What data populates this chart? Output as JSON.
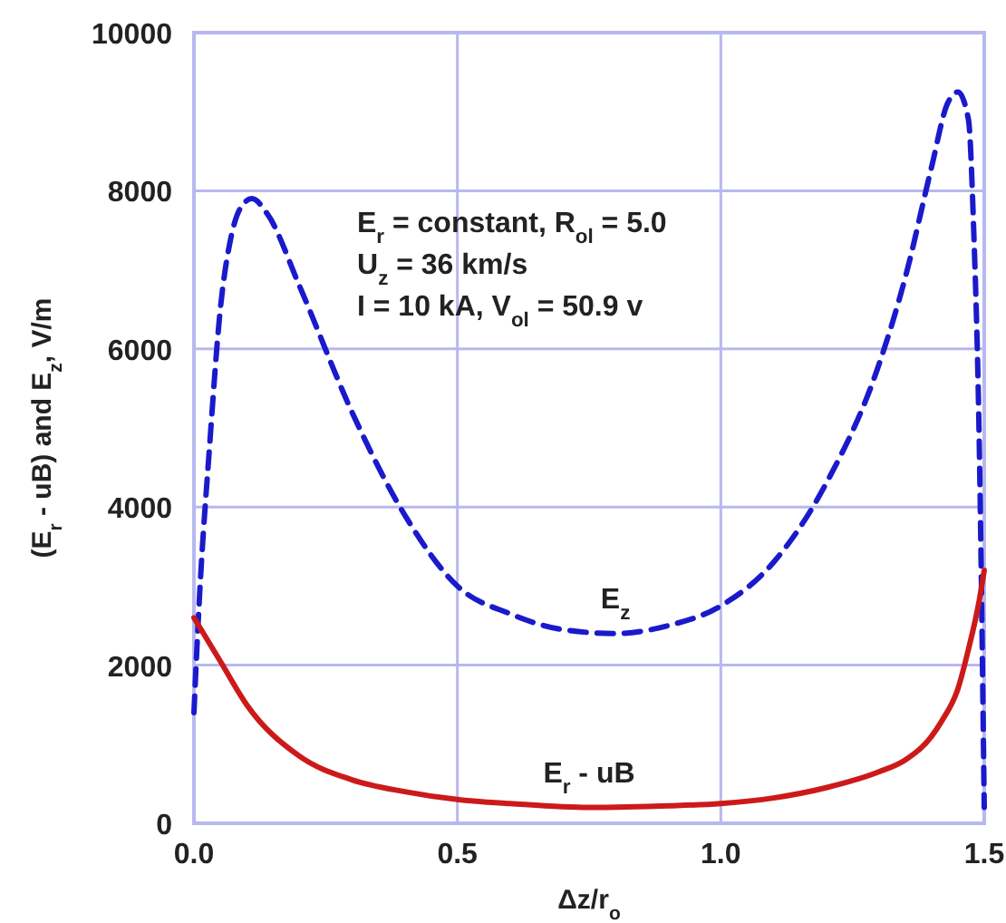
{
  "chart_data": {
    "type": "line",
    "xlabel": "Δz/r$_{o}$",
    "ylabel": "(E$_{r}$ - uB) and E$_{z}$, V/m",
    "annotations": [
      "E$_{r}$ = constant, R$_{ol}$ = 5.0",
      "U$_{z}$ = 36 km/s",
      "I = 10 kA, V$_{ol}$ = 50.9 v"
    ],
    "xlim": [
      0,
      1.5
    ],
    "ylim": [
      0,
      10000
    ],
    "xticks": [
      {
        "value": 0,
        "label": "0.0"
      },
      {
        "value": 0.5,
        "label": "0.5"
      },
      {
        "value": 1,
        "label": "1.0"
      },
      {
        "value": 1.5,
        "label": "1.5"
      }
    ],
    "yticks": [
      0,
      2000,
      4000,
      6000,
      8000,
      10000
    ],
    "grid": true,
    "series": [
      {
        "name": "E$_{z}$",
        "color": "#1a1acc",
        "line_style": "dashed",
        "x": [
          0,
          0.01,
          0.03,
          0.05,
          0.07,
          0.09,
          0.11,
          0.14,
          0.2,
          0.3,
          0.4,
          0.5,
          0.6,
          0.7,
          0.8,
          0.9,
          1.0,
          1.1,
          1.2,
          1.3,
          1.35,
          1.4,
          1.43,
          1.45,
          1.47,
          1.48,
          1.49,
          1.5
        ],
        "values": [
          1400,
          2800,
          4800,
          6500,
          7400,
          7800,
          7900,
          7700,
          6800,
          5200,
          3900,
          3000,
          2650,
          2450,
          2400,
          2500,
          2750,
          3300,
          4300,
          5800,
          6900,
          8300,
          9100,
          9250,
          8900,
          7500,
          5000,
          200
        ]
      },
      {
        "name": "E$_{r}$ - uB",
        "color": "#cc1a1a",
        "line_style": "solid",
        "x": [
          0,
          0.05,
          0.1,
          0.2,
          0.3,
          0.4,
          0.5,
          0.6,
          0.75,
          0.9,
          1.0,
          1.1,
          1.2,
          1.3,
          1.35,
          1.4,
          1.42,
          1.45,
          1.47,
          1.49,
          1.5
        ],
        "values": [
          2600,
          2050,
          1500,
          850,
          550,
          400,
          300,
          250,
          200,
          220,
          250,
          320,
          450,
          650,
          800,
          1100,
          1300,
          1700,
          2200,
          2800,
          3200
        ]
      }
    ]
  }
}
